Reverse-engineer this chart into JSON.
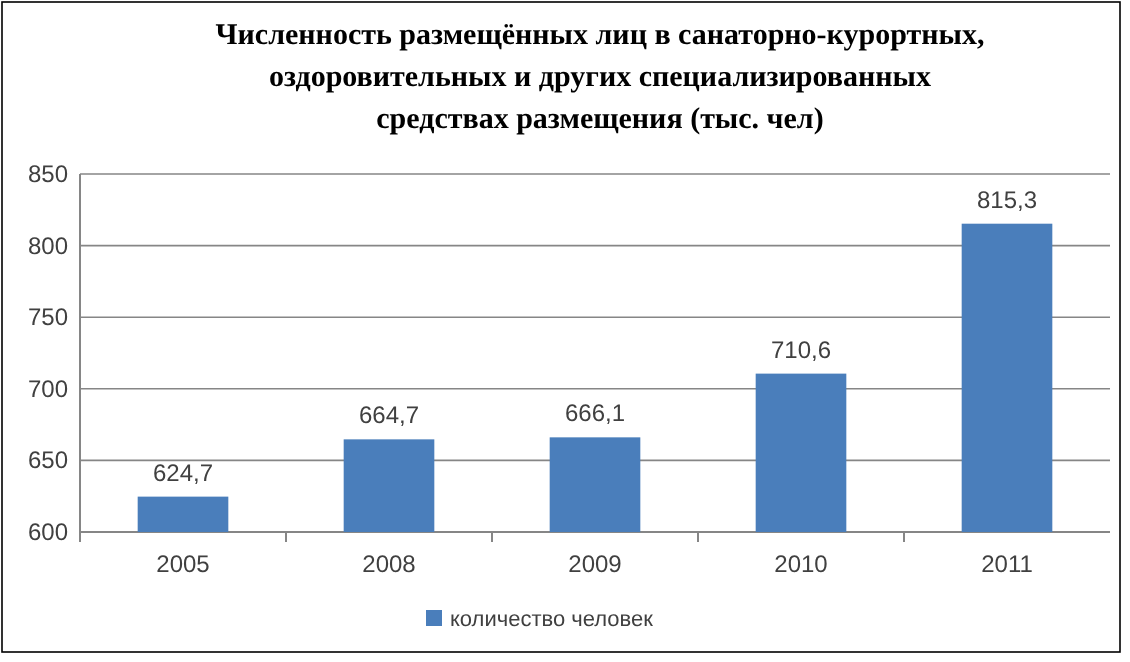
{
  "chart_data": {
    "type": "bar",
    "title": "Численность размещённых лиц в санаторно-курортных, оздоровительных и других специализированных средствах размещения (тыс. чел)",
    "categories": [
      "2005",
      "2008",
      "2009",
      "2010",
      "2011"
    ],
    "series": [
      {
        "name": "количество человек",
        "color": "#4a7ebb",
        "values": [
          624.7,
          664.7,
          666.1,
          710.6,
          815.3
        ],
        "value_labels": [
          "624,7",
          "664,7",
          "666,1",
          "710,6",
          "815,3"
        ]
      }
    ],
    "ylim": [
      600,
      850
    ],
    "yticks": [
      600,
      650,
      700,
      750,
      800,
      850
    ],
    "grid": "y",
    "legend": "bottom"
  }
}
